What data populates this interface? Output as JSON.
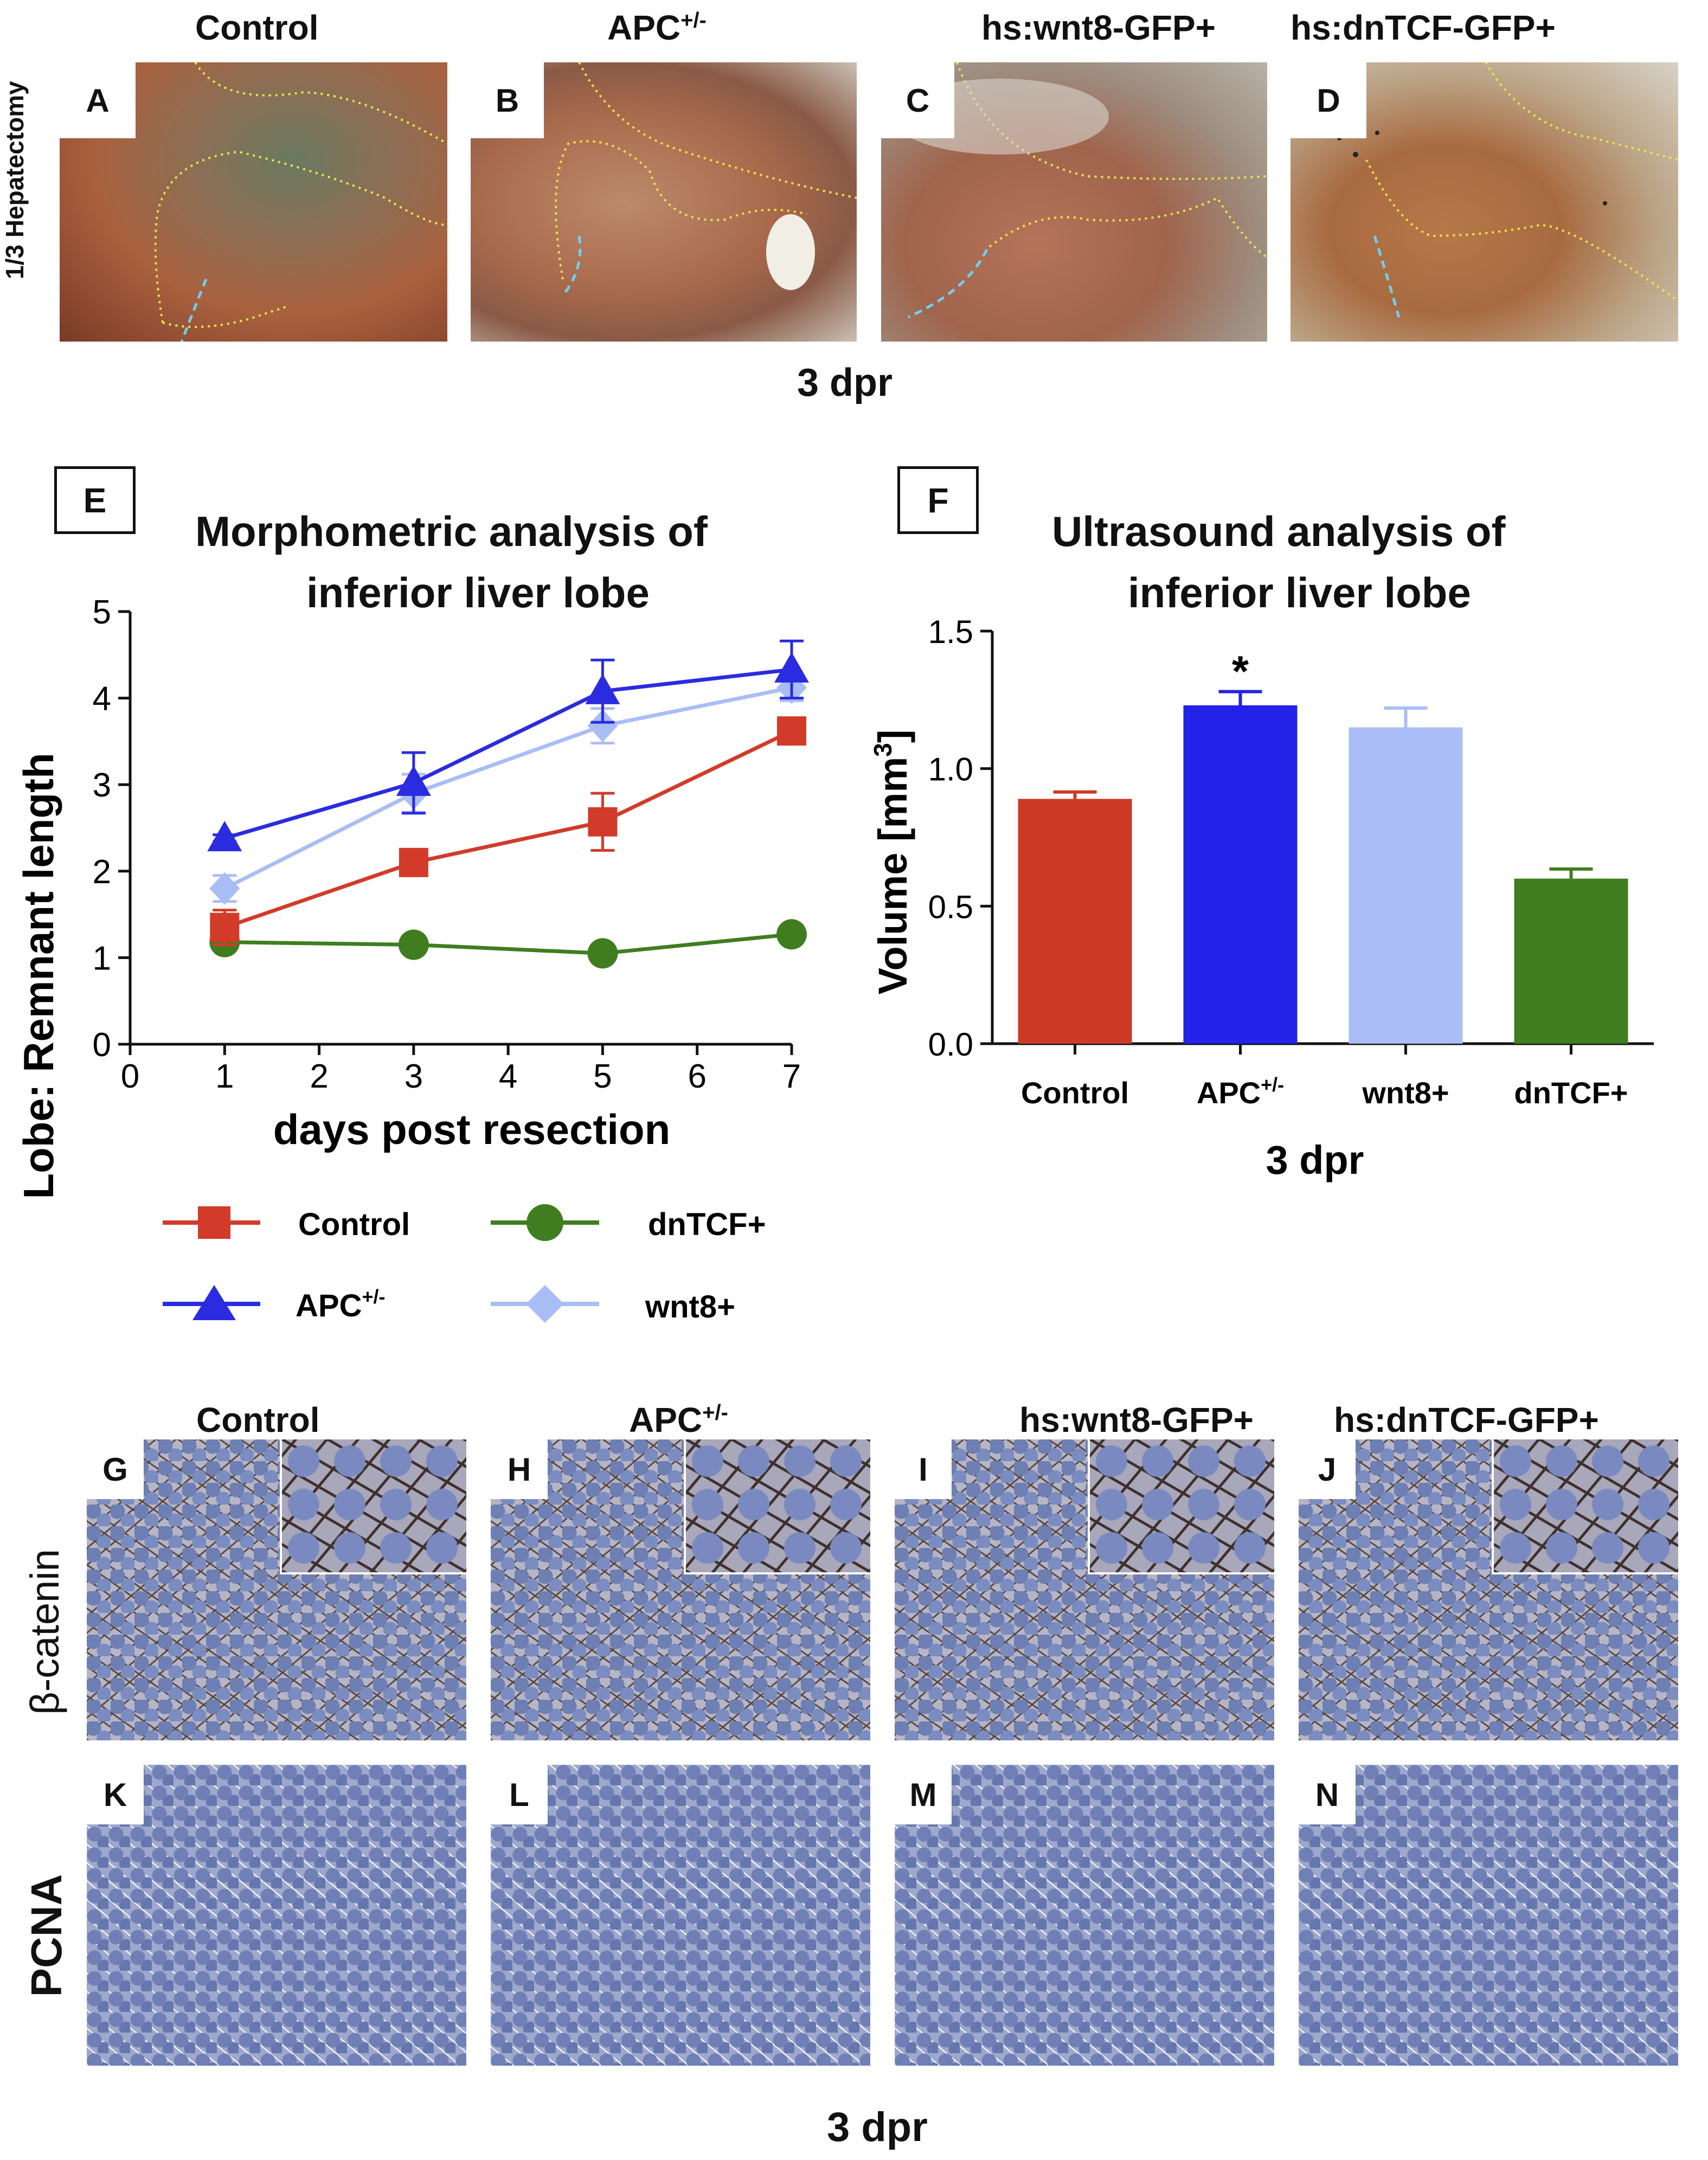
{
  "top_row": {
    "row_label": "1/3 Hepatectomy",
    "panels": [
      {
        "letter": "A",
        "title": "Control"
      },
      {
        "letter": "B",
        "title": "APC",
        "title_sup": "+/-"
      },
      {
        "letter": "C",
        "title": "hs:wnt8-GFP+"
      },
      {
        "letter": "D",
        "title": "hs:dnTCF-GFP+"
      }
    ],
    "caption": "3 dpr"
  },
  "panel_e": {
    "letter": "E",
    "title_line1": "Morphometric analysis of",
    "title_line2": "inferior liver lobe",
    "xlabel": "days post resection",
    "ylabel": "Lobe: Remnant length",
    "legend": {
      "control": "Control",
      "dntcf": "dnTCF+",
      "apc": "APC",
      "apc_sup": "+/-",
      "wnt8": "wnt8+"
    }
  },
  "panel_f": {
    "letter": "F",
    "title_line1": "Ultrasound analysis of",
    "title_line2": "inferior liver lobe",
    "ylabel": "Volume [mm",
    "ylabel_sup": "3",
    "ylabel_end": "]",
    "significance": "*",
    "xcaption": "3 dpr",
    "apc_sup": "+/-"
  },
  "chart_data": [
    {
      "type": "line",
      "title": "Morphometric analysis of inferior liver lobe",
      "xlabel": "days post resection",
      "ylabel": "Lobe: Remnant length",
      "xlim": [
        0,
        7
      ],
      "ylim": [
        0,
        5
      ],
      "xticks": [
        0,
        1,
        2,
        3,
        4,
        5,
        6,
        7
      ],
      "yticks": [
        0,
        1,
        2,
        3,
        4,
        5
      ],
      "legend_position": "bottom",
      "x": [
        1,
        3,
        5,
        7
      ],
      "series": [
        {
          "name": "Control",
          "values": [
            1.35,
            2.1,
            2.57,
            3.62
          ],
          "errors": [
            0.2,
            0.06,
            0.33,
            0.15
          ],
          "color": "#d23b2a",
          "marker": "square"
        },
        {
          "name": "APC+/-",
          "values": [
            2.38,
            3.02,
            4.08,
            4.33
          ],
          "errors": [
            0.04,
            0.35,
            0.36,
            0.33
          ],
          "color": "#2b2be0",
          "marker": "triangle"
        },
        {
          "name": "wnt8+",
          "values": [
            1.8,
            2.9,
            3.68,
            4.12
          ],
          "errors": [
            0.15,
            0.22,
            0.2,
            0.15
          ],
          "color": "#a9bdf5",
          "marker": "diamond"
        },
        {
          "name": "dnTCF+",
          "values": [
            1.18,
            1.15,
            1.05,
            1.27
          ],
          "errors": [
            0.02,
            0.02,
            0.02,
            0.02
          ],
          "color": "#3f7d20",
          "marker": "circle"
        }
      ]
    },
    {
      "type": "bar",
      "title": "Ultrasound analysis of inferior liver lobe",
      "xlabel": "3 dpr",
      "ylabel": "Volume [mm3]",
      "ylim": [
        0,
        1.5
      ],
      "yticks": [
        "0.0",
        "0.5",
        "1.0",
        "1.5"
      ],
      "categories": [
        "Control",
        "APC+/-",
        "wnt8+",
        "dnTCF+"
      ],
      "category_labels": [
        "Control",
        "APC",
        "wnt8+",
        "dnTCF+"
      ],
      "values": [
        0.89,
        1.23,
        1.15,
        0.6
      ],
      "errors": [
        0.025,
        0.05,
        0.07,
        0.035
      ],
      "colors": [
        "#cc3a26",
        "#2222e8",
        "#aabdf5",
        "#3f7d20"
      ],
      "annotations": [
        {
          "category": "APC+/-",
          "text": "*"
        }
      ]
    }
  ],
  "bottom": {
    "titles": [
      {
        "text": "Control"
      },
      {
        "text": "APC",
        "sup": "+/-"
      },
      {
        "text": "hs:wnt8-GFP+"
      },
      {
        "text": "hs:dnTCF-GFP+"
      }
    ],
    "row1_label": "β-catenin",
    "row2_label": "PCNA",
    "row1_letters": [
      "G",
      "H",
      "I",
      "J"
    ],
    "row2_letters": [
      "K",
      "L",
      "M",
      "N"
    ],
    "caption": "3 dpr"
  }
}
